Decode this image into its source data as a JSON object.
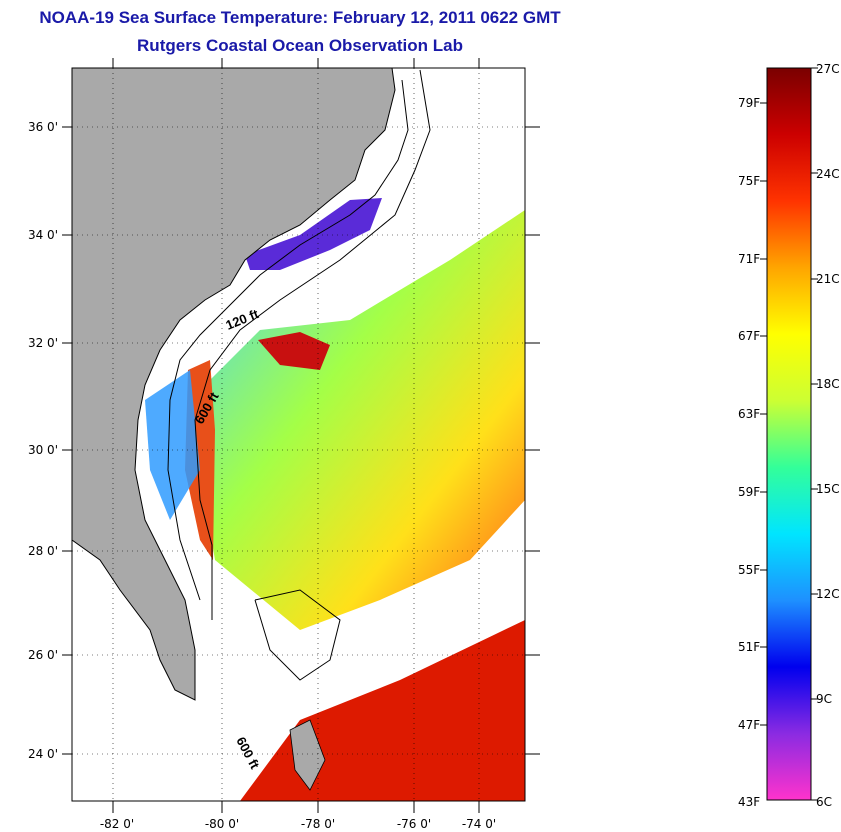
{
  "header": {
    "title": "NOAA-19 Sea Surface Temperature:  February 12, 2011 0622 GMT",
    "subtitle": "Rutgers Coastal Ocean Observation Lab"
  },
  "map": {
    "lat_labels": [
      "36 0'",
      "34 0'",
      "32 0'",
      "30 0'",
      "28 0'",
      "26 0'",
      "24 0'"
    ],
    "lon_labels": [
      "-82 0'",
      "-80 0'",
      "-78 0'",
      "-76 0'",
      "-74 0'"
    ],
    "contour_labels": [
      "120 ft",
      "600 ft",
      "600 ft"
    ],
    "colors": {
      "land": "#a9a9a9",
      "clouds": "#ffffff"
    }
  },
  "colorbar": {
    "fahrenheit_labels": [
      "79F",
      "75F",
      "71F",
      "67F",
      "63F",
      "59F",
      "55F",
      "51F",
      "47F",
      "43F"
    ],
    "celsius_labels": [
      "27C",
      "24C",
      "21C",
      "18C",
      "15C",
      "12C",
      "9C",
      "6C"
    ],
    "gradient": [
      "#ff33cc",
      "#8a2be2",
      "#0000ee",
      "#1e90ff",
      "#00e5ff",
      "#33ff99",
      "#ccff33",
      "#ffff00",
      "#ffa500",
      "#ff3300",
      "#cc0000",
      "#7a0000"
    ]
  }
}
